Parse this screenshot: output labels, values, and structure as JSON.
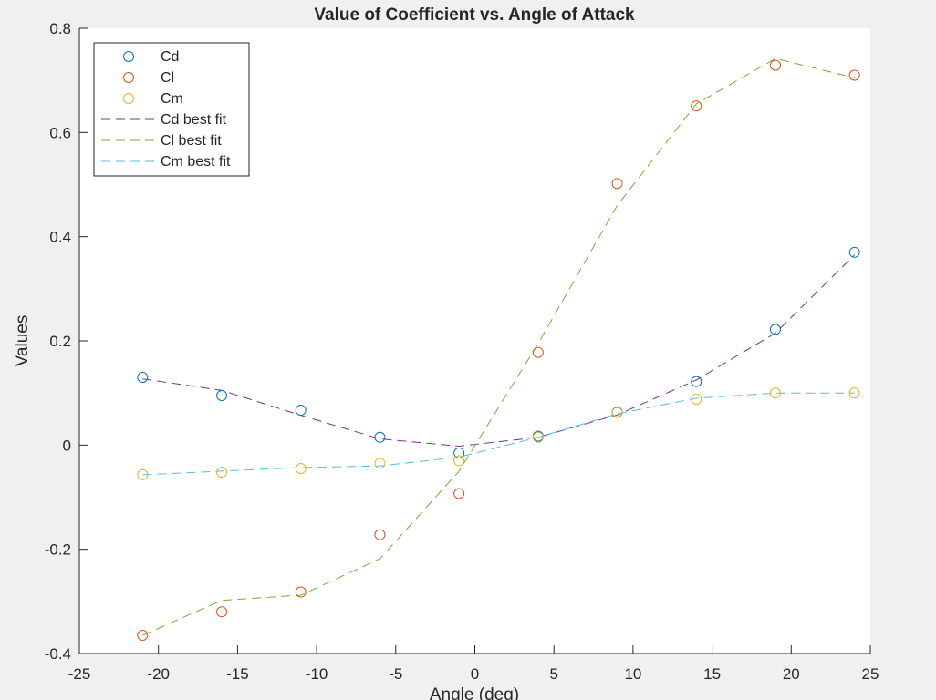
{
  "chart_data": {
    "type": "scatter",
    "title": "Value of Coefficient vs. Angle of Attack",
    "xlabel": "Angle (deg)",
    "ylabel": "Values",
    "xlim": [
      -25,
      25
    ],
    "ylim": [
      -0.4,
      0.8
    ],
    "xticks": [
      -25,
      -20,
      -15,
      -10,
      -5,
      0,
      5,
      10,
      15,
      20,
      25
    ],
    "yticks": [
      -0.4,
      -0.2,
      0,
      0.2,
      0.4,
      0.6,
      0.8
    ],
    "xtick_labels": [
      "-25",
      "-20",
      "-15",
      "-10",
      "-5",
      "0",
      "5",
      "10",
      "15",
      "20",
      "25"
    ],
    "ytick_labels": [
      "-0.4",
      "-0.2",
      "0",
      "0.2",
      "0.4",
      "0.6",
      "0.8"
    ],
    "grid": false,
    "legend_position": "top-left",
    "series": [
      {
        "name": "Cd",
        "kind": "markers",
        "marker": "circle",
        "color": "#0072BD",
        "x": [
          -21,
          -16,
          -11,
          -6,
          -1,
          4,
          9,
          14,
          19,
          24
        ],
        "y": [
          0.13,
          0.095,
          0.067,
          0.015,
          -0.015,
          0.017,
          0.063,
          0.122,
          0.222,
          0.37
        ]
      },
      {
        "name": "Cl",
        "kind": "markers",
        "marker": "circle",
        "color": "#D95319",
        "x": [
          -21,
          -16,
          -11,
          -6,
          -1,
          4,
          9,
          14,
          19,
          24
        ],
        "y": [
          -0.365,
          -0.32,
          -0.282,
          -0.172,
          -0.093,
          0.178,
          0.502,
          0.651,
          0.729,
          0.71
        ]
      },
      {
        "name": "Cm",
        "kind": "markers",
        "marker": "circle",
        "color": "#EDB120",
        "x": [
          -21,
          -16,
          -11,
          -6,
          -1,
          4,
          9,
          14,
          19,
          24
        ],
        "y": [
          -0.057,
          -0.052,
          -0.045,
          -0.035,
          -0.03,
          0.015,
          0.064,
          0.088,
          0.1,
          0.1
        ]
      },
      {
        "name": "Cd best fit",
        "kind": "dashed-line",
        "color": "#7E2F8E",
        "x": [
          -21,
          -16,
          -11,
          -6,
          -1,
          4,
          9,
          14,
          19,
          24
        ],
        "y": [
          0.127,
          0.105,
          0.057,
          0.012,
          -0.002,
          0.015,
          0.058,
          0.125,
          0.215,
          0.365
        ]
      },
      {
        "name": "Cl best fit",
        "kind": "dashed-line",
        "color": "#77AC30",
        "x": [
          -21,
          -16,
          -11,
          -6,
          -1,
          4,
          9,
          14,
          19,
          24
        ],
        "y": [
          -0.365,
          -0.298,
          -0.288,
          -0.218,
          -0.05,
          0.195,
          0.46,
          0.655,
          0.742,
          0.705
        ]
      },
      {
        "name": "Cm best fit",
        "kind": "dashed-line",
        "color": "#4DBEEE",
        "x": [
          -21,
          -16,
          -11,
          -6,
          -1,
          4,
          9,
          14,
          19,
          24
        ],
        "y": [
          -0.057,
          -0.05,
          -0.043,
          -0.04,
          -0.023,
          0.015,
          0.06,
          0.09,
          0.1,
          0.1
        ]
      }
    ]
  }
}
